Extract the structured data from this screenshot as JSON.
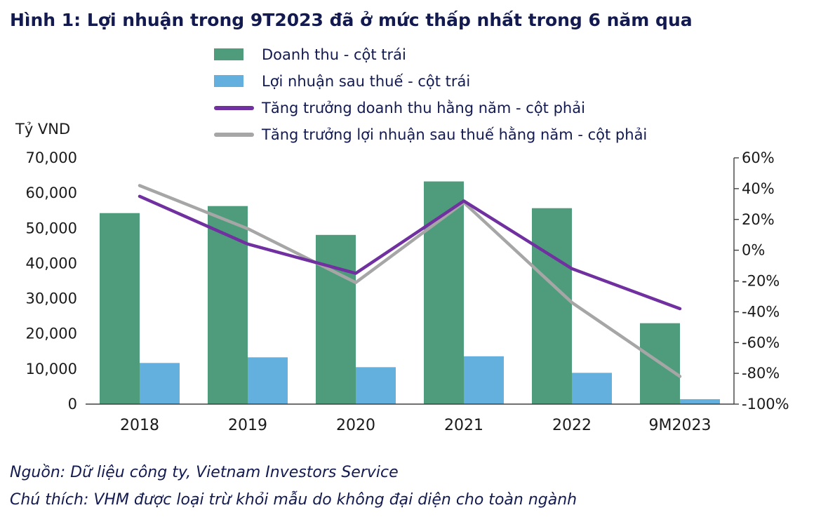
{
  "title": "Hình 1: Lợi nhuận trong 9T2023 đã ở mức thấp nhất trong 6 năm qua",
  "axis_left_unit": "Tỷ VND",
  "legend": [
    {
      "label": "Doanh thu - cột trái",
      "type": "bar",
      "color": "#4e9c7c"
    },
    {
      "label": "Lợi nhuận sau thuế - cột trái",
      "type": "bar",
      "color": "#63b0de"
    },
    {
      "label": "Tăng trưởng doanh thu hằng năm - cột phải",
      "type": "line",
      "color": "#7030a0"
    },
    {
      "label": "Tăng trưởng lợi nhuận sau thuế hằng năm - cột phải",
      "type": "line",
      "color": "#a6a6a6"
    }
  ],
  "chart_data": {
    "type": "bar+line combo",
    "categories": [
      "2018",
      "2019",
      "2020",
      "2021",
      "2022",
      "9M2023"
    ],
    "series": [
      {
        "key": "revenue-bar",
        "name": "Doanh thu - cột trái",
        "type": "bar",
        "axis": "left",
        "color": "#4e9c7c",
        "values": [
          54300,
          56300,
          48100,
          63300,
          55700,
          23000
        ]
      },
      {
        "key": "profit-bar",
        "name": "Lợi nhuận sau thuế - cột trái",
        "type": "bar",
        "axis": "left",
        "color": "#63b0de",
        "values": [
          11700,
          13300,
          10500,
          13600,
          8900,
          1400
        ]
      },
      {
        "key": "revenue-growth-line",
        "name": "Tăng trưởng doanh thu hằng năm - cột phải",
        "type": "line",
        "axis": "right",
        "color": "#7030a0",
        "values": [
          35,
          4,
          -15,
          32,
          -12,
          -38
        ]
      },
      {
        "key": "profit-growth-line",
        "name": "Tăng trưởng lợi nhuận sau thuế hằng năm - cột phải",
        "type": "line",
        "axis": "right",
        "color": "#a6a6a6",
        "values": [
          42,
          14,
          -21,
          31,
          -34,
          -82
        ]
      }
    ],
    "left_axis": {
      "min": 0,
      "max": 70000,
      "step": 10000,
      "tick_labels": [
        "0",
        "10,000",
        "20,000",
        "30,000",
        "40,000",
        "50,000",
        "60,000",
        "70,000"
      ]
    },
    "right_axis": {
      "min": -100,
      "max": 60,
      "step": 20,
      "tick_labels": [
        "60%",
        "40%",
        "20%",
        "0%",
        "-20%",
        "-40%",
        "-60%",
        "-80%",
        "-100%"
      ]
    },
    "grid": "off",
    "legend_position": "top-left-stacked"
  },
  "footer": {
    "source": "Nguồn: Dữ liệu công ty, Vietnam Investors Service",
    "note": "Chú thích: VHM được loại trừ khỏi mẫu do không đại diện cho toàn ngành"
  }
}
